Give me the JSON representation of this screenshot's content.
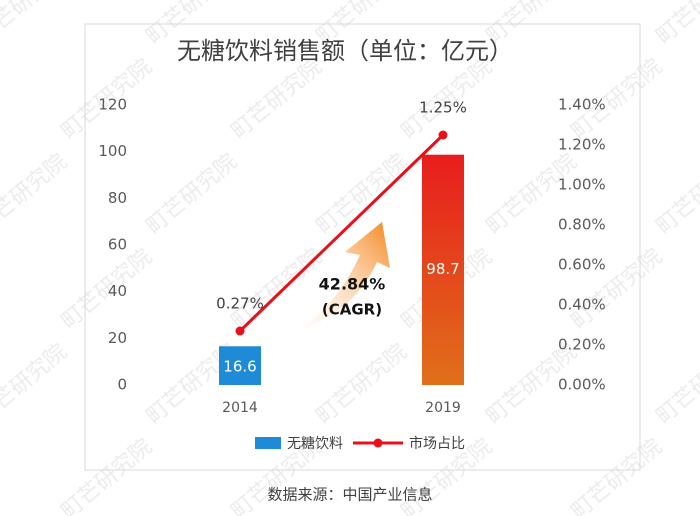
{
  "chart_data": {
    "type": "bar_line",
    "title": "无糖饮料销售额（单位：亿元）",
    "categories": [
      "2014",
      "2019"
    ],
    "series": [
      {
        "name": "无糖饮料",
        "type": "bar",
        "color": "#1f8ad6",
        "bar_fills": [
          "#1f8ad6",
          [
            "#e81d1d",
            "#e0701a"
          ]
        ],
        "values": [
          16.6,
          98.7
        ]
      },
      {
        "name": "市场占比",
        "type": "line",
        "axis": "y2",
        "color": "#e8101a",
        "values": [
          0.27,
          1.25
        ],
        "value_labels": [
          "0.27%",
          "1.25%"
        ]
      }
    ],
    "ylim": [
      0,
      120
    ],
    "yticks": [
      0,
      20,
      40,
      60,
      80,
      100,
      120
    ],
    "y2lim": [
      0,
      1.4
    ],
    "y2ticks": [
      {
        "value": 0,
        "label": "0.00%"
      },
      {
        "value": 0.2,
        "label": "0.20%"
      },
      {
        "value": 0.4,
        "label": "0.40%"
      },
      {
        "value": 0.6,
        "label": "0.60%"
      },
      {
        "value": 0.8,
        "label": "0.80%"
      },
      {
        "value": 1.0,
        "label": "1.00%"
      },
      {
        "value": 1.2,
        "label": "1.20%"
      },
      {
        "value": 1.4,
        "label": "1.40%"
      }
    ],
    "annotations": [
      "42.84%",
      "(CAGR)"
    ],
    "source": "数据来源：中国产业信息",
    "watermark": "町芒研究院"
  }
}
